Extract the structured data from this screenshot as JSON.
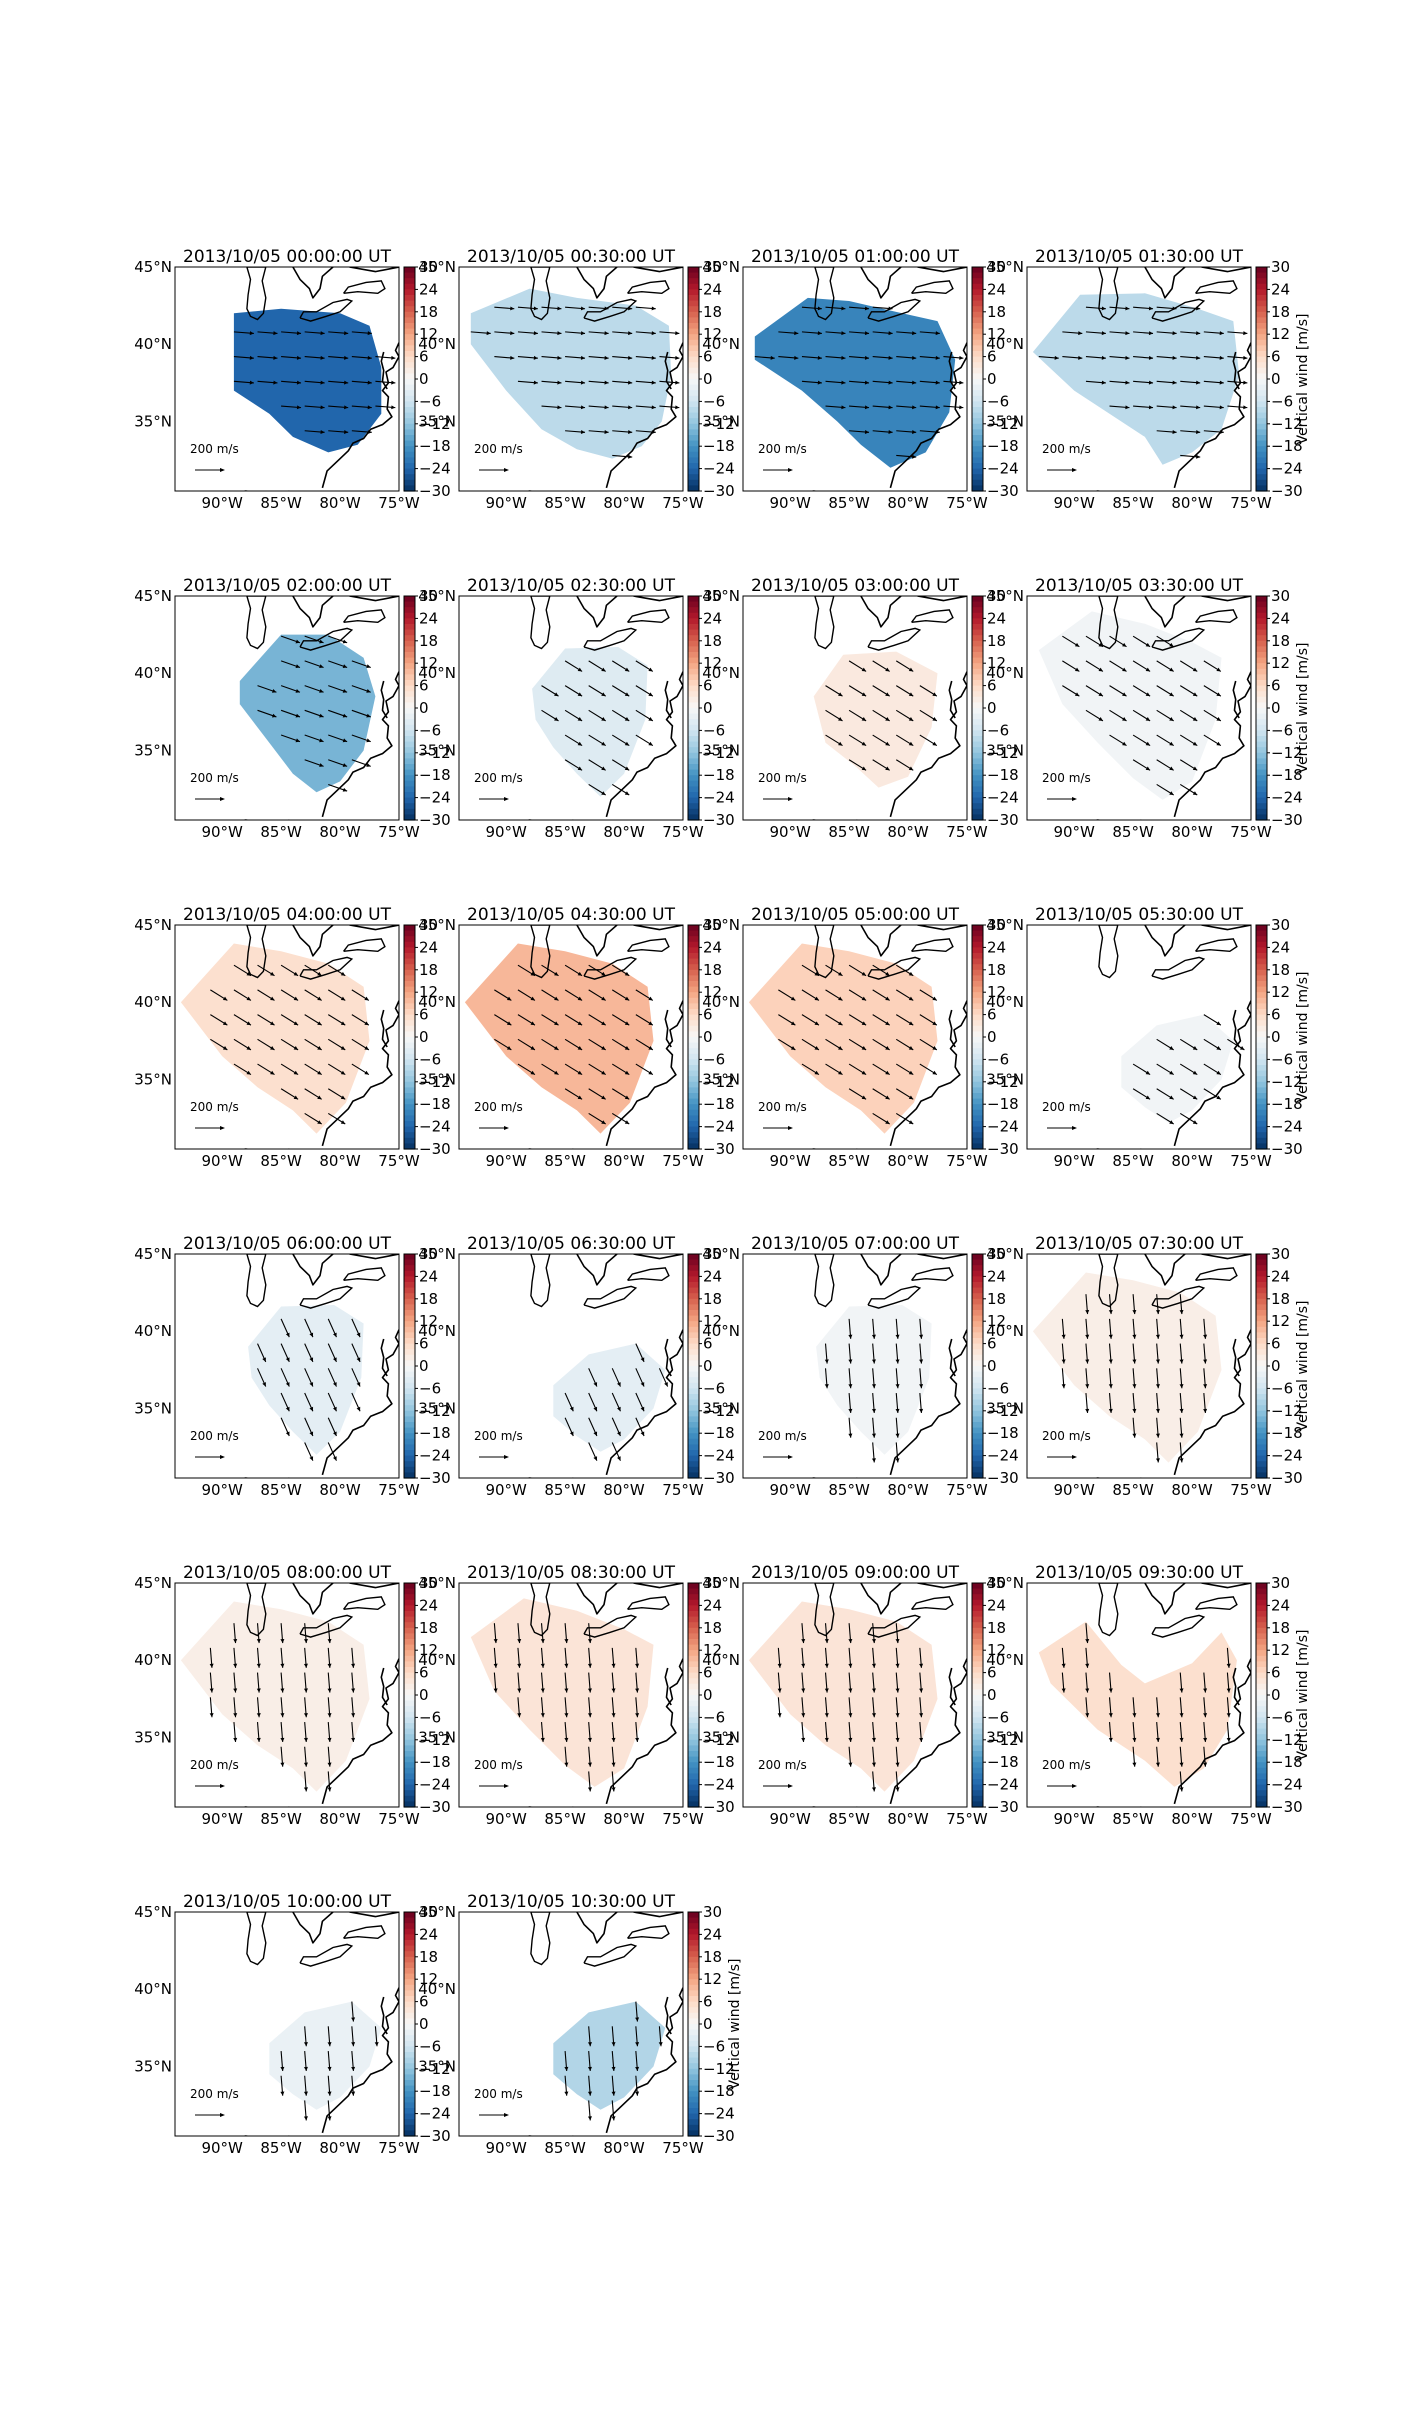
{
  "figure": {
    "panel_titles": [
      "2013/10/05 00:00:00 UT",
      "2013/10/05 00:30:00 UT",
      "2013/10/05 01:00:00 UT",
      "2013/10/05 01:30:00 UT",
      "2013/10/05 02:00:00 UT",
      "2013/10/05 02:30:00 UT",
      "2013/10/05 03:00:00 UT",
      "2013/10/05 03:30:00 UT",
      "2013/10/05 04:00:00 UT",
      "2013/10/05 04:30:00 UT",
      "2013/10/05 05:00:00 UT",
      "2013/10/05 05:30:00 UT",
      "2013/10/05 06:00:00 UT",
      "2013/10/05 06:30:00 UT",
      "2013/10/05 07:00:00 UT",
      "2013/10/05 07:30:00 UT",
      "2013/10/05 08:00:00 UT",
      "2013/10/05 08:30:00 UT",
      "2013/10/05 09:00:00 UT",
      "2013/10/05 09:30:00 UT",
      "2013/10/05 10:00:00 UT",
      "2013/10/05 10:30:00 UT"
    ],
    "colorbar_label": "Vertical wind [m/s]",
    "quiver_key_label": "200 m/s"
  },
  "chart_data": {
    "type": "heatmap",
    "panel_count": 22,
    "grid_columns": 4,
    "x_ticks": [
      "90°W",
      "85°W",
      "80°W",
      "75°W"
    ],
    "y_ticks": [
      "45°N",
      "40°N",
      "35°N"
    ],
    "xlim_deg_lon": [
      -94,
      -75
    ],
    "ylim_deg_lat": [
      30.5,
      45
    ],
    "colorbar": {
      "range": [
        -30,
        30
      ],
      "ticks": [
        "30",
        "24",
        "18",
        "12",
        "6",
        "0",
        "−6",
        "−12",
        "−18",
        "−24",
        "−30"
      ],
      "colormap": "RdBu_r",
      "colors_hex": [
        "#053061",
        "#2166ac",
        "#4393c3",
        "#92c5de",
        "#d1e5f0",
        "#f7f7f7",
        "#fddbc7",
        "#f4a582",
        "#d6604d",
        "#b2182b",
        "#67001f"
      ]
    },
    "vertical_wind_m_s": [
      -24,
      -8,
      -20,
      -8,
      -14,
      -4,
      3,
      -1,
      5,
      10,
      7,
      -1,
      -3,
      -3,
      -1,
      2,
      2,
      4,
      4,
      5,
      -2,
      -9
    ],
    "wind_direction": [
      "E",
      "E",
      "E",
      "E",
      "ESE",
      "SE",
      "SE",
      "SE",
      "SE",
      "SE",
      "SE",
      "SE",
      "SSE",
      "SSE",
      "S",
      "S",
      "S",
      "S",
      "S",
      "S",
      "S",
      "S"
    ]
  }
}
